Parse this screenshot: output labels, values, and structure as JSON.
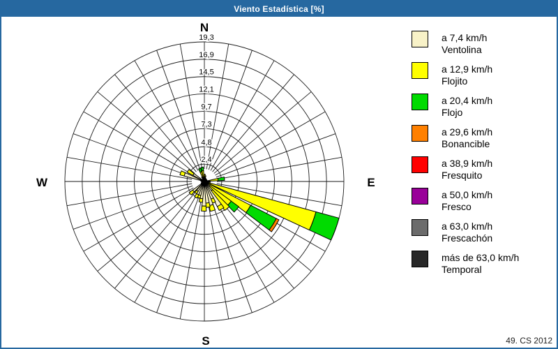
{
  "window": {
    "title": "Viento Estadística [%]",
    "footer": "49. CS 2012",
    "titlebar_color": "#2668A0",
    "border_color": "#2668A0"
  },
  "legend": {
    "items": [
      {
        "color": "#F8F2C8",
        "speed": "a 7,4 km/h",
        "name": "Ventolina"
      },
      {
        "color": "#FFFF00",
        "speed": "a 12,9 km/h",
        "name": "Flojito"
      },
      {
        "color": "#00DB00",
        "speed": "a 20,4 km/h",
        "name": "Flojo"
      },
      {
        "color": "#FF8000",
        "speed": "a 29,6 km/h",
        "name": "Bonancible"
      },
      {
        "color": "#FF0000",
        "speed": "a 38,9 km/h",
        "name": "Fresquito"
      },
      {
        "color": "#990099",
        "speed": "a 50,0 km/h",
        "name": "Fresco"
      },
      {
        "color": "#6B6B6B",
        "speed": "a 63,0 km/h",
        "name": "Frescachón"
      },
      {
        "color": "#282828",
        "speed": "más de 63,0 km/h",
        "name": "Temporal"
      }
    ]
  },
  "chart_data": {
    "type": "bar",
    "subtype": "wind-rose-polar-stacked-bar",
    "units": "%",
    "title": "Viento Estadística [%]",
    "compass": {
      "n": "N",
      "e": "E",
      "s": "S",
      "w": "W"
    },
    "sectors": 36,
    "max": 19.3,
    "ring_values": [
      2.4,
      4.8,
      7.3,
      9.7,
      12.1,
      14.5,
      16.9,
      19.3
    ],
    "ring_labels": [
      "2,4",
      "4,8",
      "7,3",
      "9,7",
      "12,1",
      "14,5",
      "16,9",
      "19,3"
    ],
    "class_names": [
      "Ventolina",
      "Flojito",
      "Flojo",
      "Bonancible",
      "Fresquito",
      "Fresco",
      "Frescachón",
      "Temporal"
    ],
    "class_colors": [
      "#F8F2C8",
      "#FFFF00",
      "#00DB00",
      "#FF8000",
      "#FF0000",
      "#990099",
      "#6B6B6B",
      "#282828"
    ],
    "bars": [
      {
        "dir": 82,
        "values": [
          0.4,
          1.5,
          0.9
        ]
      },
      {
        "dir": 110,
        "values": [
          0.4,
          15.6,
          3.3
        ]
      },
      {
        "dir": 122,
        "values": [
          0.4,
          6.8,
          4.0,
          0.4
        ]
      },
      {
        "dir": 131,
        "values": [
          1.0,
          3.6,
          1.3
        ]
      },
      {
        "dir": 140,
        "values": [
          1.6,
          3.3
        ]
      },
      {
        "dir": 148,
        "values": [
          3.9,
          0.6
        ]
      },
      {
        "dir": 156,
        "values": [
          2.6,
          0.6
        ]
      },
      {
        "dir": 164,
        "values": [
          3.4,
          0.8
        ]
      },
      {
        "dir": 172,
        "values": [
          3.0,
          0.6
        ]
      },
      {
        "dir": 181,
        "values": [
          3.4,
          0.7
        ]
      },
      {
        "dir": 190,
        "values": [
          2.4,
          0.5
        ]
      },
      {
        "dir": 199,
        "values": [
          2.0,
          0.4
        ]
      },
      {
        "dir": 208,
        "values": [
          2.0,
          0.5
        ]
      },
      {
        "dir": 217,
        "values": [
          1.6,
          0.4
        ]
      },
      {
        "dir": 229,
        "values": [
          2.0,
          0.6
        ]
      },
      {
        "dir": 290,
        "values": [
          2.9,
          0.6
        ]
      },
      {
        "dir": 303,
        "values": [
          1.8,
          0.9
        ]
      },
      {
        "dir": 340,
        "values": [
          0.3,
          1.1,
          0.5
        ]
      },
      {
        "dir": 351,
        "values": [
          0.3,
          1.2,
          0.5
        ]
      },
      {
        "dir": 2,
        "values": [
          0.2,
          0.8
        ]
      },
      {
        "dir": 11,
        "values": [
          0.2,
          0.6
        ]
      },
      {
        "dir": 21,
        "values": [
          0.5
        ]
      },
      {
        "dir": 31,
        "values": [
          0.4
        ]
      },
      {
        "dir": 45,
        "values": [
          0.4
        ]
      },
      {
        "dir": 60,
        "values": [
          0.4
        ]
      },
      {
        "dir": 75,
        "values": [
          0.4
        ]
      },
      {
        "dir": 91,
        "values": [
          0.5,
          0.3
        ]
      },
      {
        "dir": 100,
        "values": [
          0.5,
          0.3
        ]
      },
      {
        "dir": 240,
        "values": [
          0.5
        ]
      },
      {
        "dir": 251,
        "values": [
          0.4
        ]
      },
      {
        "dir": 262,
        "values": [
          0.4
        ]
      },
      {
        "dir": 273,
        "values": [
          0.4
        ]
      },
      {
        "dir": 281,
        "values": [
          0.5
        ]
      },
      {
        "dir": 312,
        "values": [
          0.4
        ]
      },
      {
        "dir": 321,
        "values": [
          0.4
        ]
      },
      {
        "dir": 331,
        "values": [
          0.4,
          0.3
        ]
      }
    ]
  }
}
